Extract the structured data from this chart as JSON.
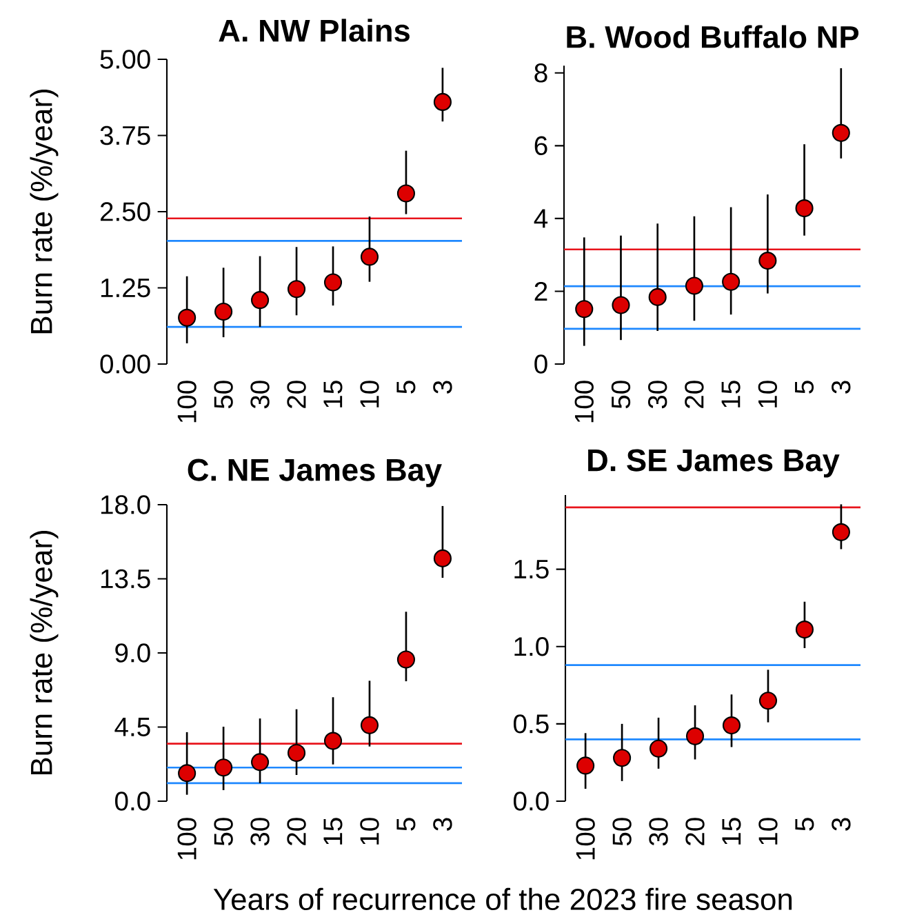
{
  "chart_data": [
    {
      "type": "scatter",
      "title": "A. NW Plains",
      "ylabel": "Burn rate (%/year)",
      "categories": [
        "100",
        "50",
        "30",
        "20",
        "15",
        "10",
        "5",
        "3"
      ],
      "values": [
        0.76,
        0.86,
        1.05,
        1.23,
        1.34,
        1.76,
        2.8,
        4.3
      ],
      "errors": [
        [
          0.34,
          1.44
        ],
        [
          0.44,
          1.58
        ],
        [
          0.61,
          1.77
        ],
        [
          0.8,
          1.92
        ],
        [
          0.96,
          1.93
        ],
        [
          1.35,
          2.42
        ],
        [
          2.46,
          3.5
        ],
        [
          3.98,
          4.86
        ]
      ],
      "color": "#dd0000",
      "marker": "circle",
      "ylim": [
        0,
        5
      ],
      "yticks": [
        {
          "value": 0,
          "label": "0.00"
        },
        1.25,
        {
          "value": 2.5,
          "label": "2.50"
        },
        3.75,
        {
          "value": 5,
          "label": "5.00"
        }
      ],
      "ref_lines": [
        {
          "axis": "y",
          "value": 2.39,
          "color": "#e8141c"
        },
        {
          "axis": "y",
          "value": 2.02,
          "color": "#1e88ff"
        },
        {
          "axis": "y",
          "value": 0.61,
          "color": "#1e88ff"
        }
      ]
    },
    {
      "type": "scatter",
      "title": "B. Wood Buffalo NP",
      "categories": [
        "100",
        "50",
        "30",
        "20",
        "15",
        "10",
        "5",
        "3"
      ],
      "values": [
        1.51,
        1.62,
        1.84,
        2.15,
        2.26,
        2.84,
        4.28,
        6.35
      ],
      "errors": [
        [
          0.5,
          3.48
        ],
        [
          0.66,
          3.53
        ],
        [
          0.91,
          3.86
        ],
        [
          1.19,
          4.06
        ],
        [
          1.36,
          4.31
        ],
        [
          1.94,
          4.66
        ],
        [
          3.53,
          6.04
        ],
        [
          5.65,
          8.13
        ]
      ],
      "color": "#dd0000",
      "marker": "circle",
      "ylim": [
        0,
        8.2
      ],
      "yticks": [
        0,
        2,
        4,
        6,
        8
      ],
      "ref_lines": [
        {
          "axis": "y",
          "value": 3.15,
          "color": "#e8141c"
        },
        {
          "axis": "y",
          "value": 2.14,
          "color": "#1e88ff"
        },
        {
          "axis": "y",
          "value": 0.97,
          "color": "#1e88ff"
        }
      ]
    },
    {
      "type": "scatter",
      "title": "C. NE James Bay",
      "ylabel": "Burn rate (%/year)",
      "xlabel": "Years of recurrence of the 2023 fire season",
      "categories": [
        "100",
        "50",
        "30",
        "20",
        "15",
        "10",
        "5",
        "3"
      ],
      "values": [
        1.7,
        2.04,
        2.37,
        2.93,
        3.66,
        4.61,
        8.6,
        14.74
      ],
      "errors": [
        [
          0.39,
          4.19
        ],
        [
          0.67,
          4.52
        ],
        [
          1.09,
          5.02
        ],
        [
          1.59,
          5.58
        ],
        [
          2.23,
          6.31
        ],
        [
          3.32,
          7.31
        ],
        [
          7.28,
          11.5
        ],
        [
          13.56,
          17.92
        ]
      ],
      "color": "#dd0000",
      "marker": "circle",
      "ylim": [
        0,
        18
      ],
      "yticks": [
        {
          "value": 0,
          "label": "0.0"
        },
        4.5,
        {
          "value": 9,
          "label": "9.0"
        },
        13.5,
        {
          "value": 18,
          "label": "18.0"
        }
      ],
      "ref_lines": [
        {
          "axis": "y",
          "value": 3.49,
          "color": "#e8141c"
        },
        {
          "axis": "y",
          "value": 2.04,
          "color": "#1e88ff"
        },
        {
          "axis": "y",
          "value": 1.09,
          "color": "#1e88ff"
        }
      ]
    },
    {
      "type": "scatter",
      "title": "D. SE James Bay",
      "categories": [
        "100",
        "50",
        "30",
        "20",
        "15",
        "10",
        "5",
        "3"
      ],
      "values": [
        0.23,
        0.28,
        0.34,
        0.42,
        0.49,
        0.65,
        1.11,
        1.74
      ],
      "errors": [
        [
          0.08,
          0.44
        ],
        [
          0.13,
          0.5
        ],
        [
          0.21,
          0.54
        ],
        [
          0.27,
          0.62
        ],
        [
          0.35,
          0.69
        ],
        [
          0.51,
          0.85
        ],
        [
          0.99,
          1.29
        ],
        [
          1.63,
          1.92
        ]
      ],
      "color": "#dd0000",
      "marker": "circle",
      "ylim": [
        0,
        1.98
      ],
      "yticks": [
        {
          "value": 0,
          "label": "0.0"
        },
        0.5,
        {
          "value": 1,
          "label": "1.0"
        },
        1.5
      ],
      "ref_lines": [
        {
          "axis": "y",
          "value": 1.9,
          "color": "#e8141c"
        },
        {
          "axis": "y",
          "value": 0.88,
          "color": "#1e88ff"
        },
        {
          "axis": "y",
          "value": 0.4,
          "color": "#1e88ff"
        }
      ]
    }
  ]
}
